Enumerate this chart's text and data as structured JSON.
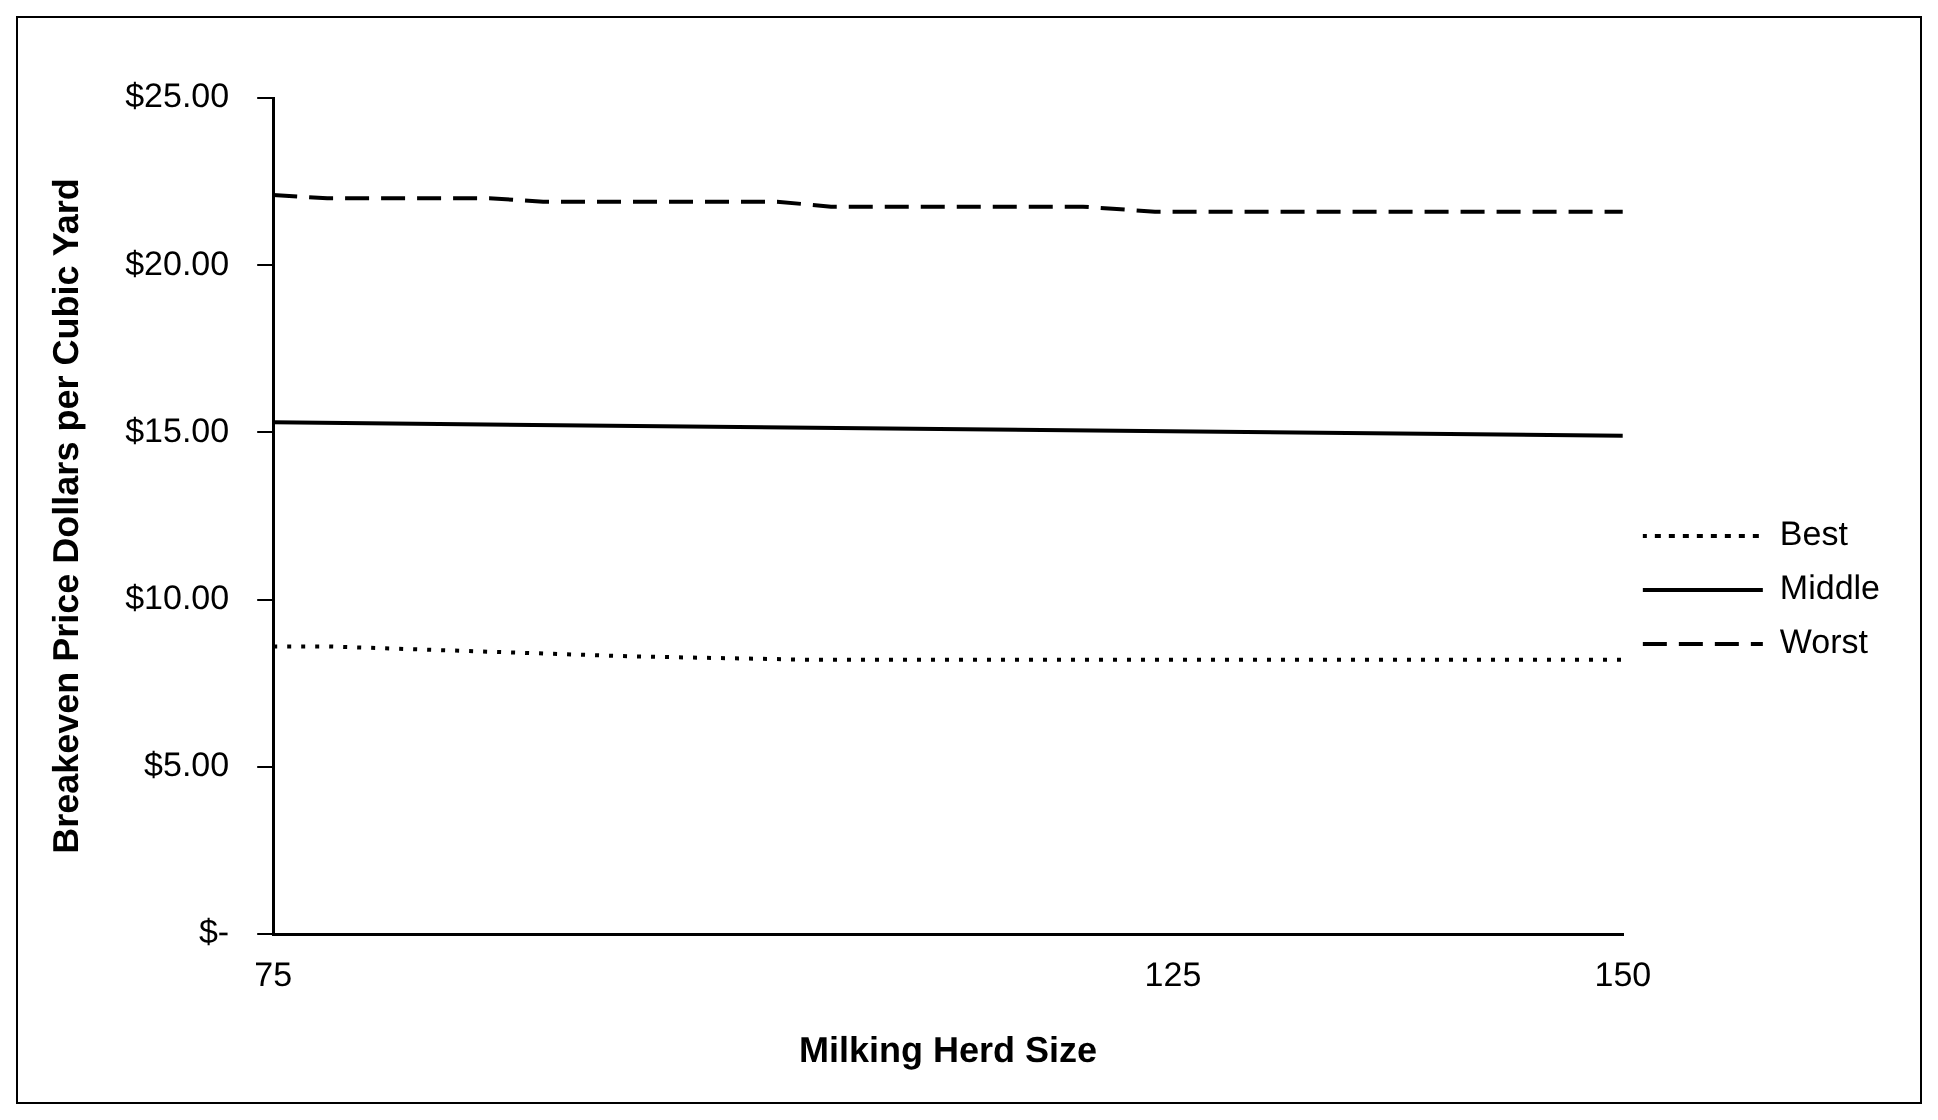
{
  "chart_data": {
    "type": "line",
    "xlabel": "Milking Herd Size",
    "ylabel": "Breakeven Price Dollars per Cubic Yard",
    "xlim": [
      75,
      150
    ],
    "xticks": [
      75,
      125,
      150
    ],
    "ylim": [
      0,
      25
    ],
    "yticks": [
      {
        "value": 0,
        "label": "$-"
      },
      {
        "value": 5,
        "label": "$5.00"
      },
      {
        "value": 10,
        "label": "$10.00"
      },
      {
        "value": 15,
        "label": "$15.00"
      },
      {
        "value": 20,
        "label": "$20.00"
      },
      {
        "value": 25,
        "label": "$25.00"
      }
    ],
    "grid": false,
    "legend": "right",
    "marker": "none",
    "series": [
      {
        "name": "Best",
        "color": "#000000",
        "line_style": "dotted",
        "x": [
          75,
          78,
          95,
          105,
          150
        ],
        "values": [
          8.6,
          8.6,
          8.3,
          8.2,
          8.2
        ]
      },
      {
        "name": "Middle",
        "color": "#000000",
        "line_style": "solid",
        "x": [
          75,
          112,
          150
        ],
        "values": [
          15.3,
          15.1,
          14.9
        ]
      },
      {
        "name": "Worst",
        "color": "#000000",
        "line_style": "dashed",
        "x": [
          75,
          78,
          87,
          90,
          103,
          106,
          120,
          124,
          150
        ],
        "values": [
          22.1,
          22.0,
          22.0,
          21.9,
          21.9,
          21.75,
          21.75,
          21.6,
          21.6
        ]
      }
    ]
  }
}
